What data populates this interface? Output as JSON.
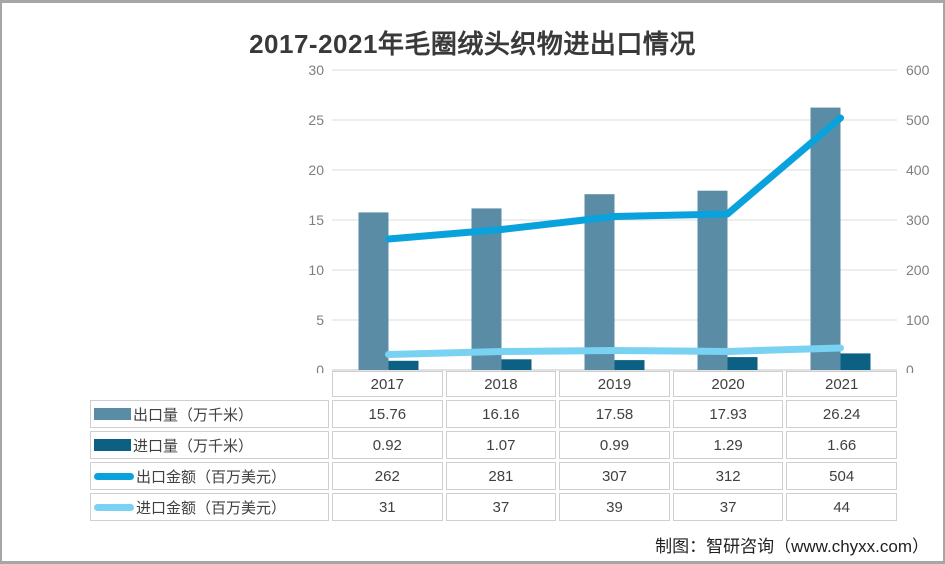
{
  "title": "2017-2021年毛圈绒头织物进出口情况",
  "footer": "制图：智研咨询（www.chyxx.com）",
  "colors": {
    "frame_border": "#A6A6A6",
    "gridline": "#DCDCDC",
    "baseline": "#C6C6C6",
    "axis_text": "#7F7F7F",
    "table_border": "#CFCFCF",
    "table_text": "#404040",
    "title_text": "#393939"
  },
  "chart_data": {
    "type": "bar",
    "subtype": "combo-bar-line-dual-axis",
    "title": "2017-2021年毛圈绒头织物进出口情况",
    "categories": [
      "2017",
      "2018",
      "2019",
      "2020",
      "2021"
    ],
    "series": [
      {
        "name": "出口量（万千米）",
        "type": "bar",
        "axis": "left",
        "color": "#5B8CA6",
        "values": [
          15.76,
          16.16,
          17.58,
          17.93,
          26.24
        ]
      },
      {
        "name": "进口量（万千米）",
        "type": "bar",
        "axis": "left",
        "color": "#0C6083",
        "values": [
          0.92,
          1.07,
          0.99,
          1.29,
          1.66
        ]
      },
      {
        "name": "出口金额（百万美元）",
        "type": "line",
        "axis": "right",
        "color": "#0AA2DC",
        "values": [
          262,
          281,
          307,
          312,
          504
        ]
      },
      {
        "name": "进口金额（百万美元）",
        "type": "line",
        "axis": "right",
        "color": "#79D2F2",
        "values": [
          31,
          37,
          39,
          37,
          44
        ]
      }
    ],
    "left_axis": {
      "min": 0,
      "max": 30,
      "ticks": [
        0,
        5,
        10,
        15,
        20,
        25,
        30
      ]
    },
    "right_axis": {
      "min": 0,
      "max": 600,
      "ticks": [
        0,
        100,
        200,
        300,
        400,
        500,
        600
      ]
    },
    "grid": true,
    "legend_position": "data-table-left-column"
  }
}
